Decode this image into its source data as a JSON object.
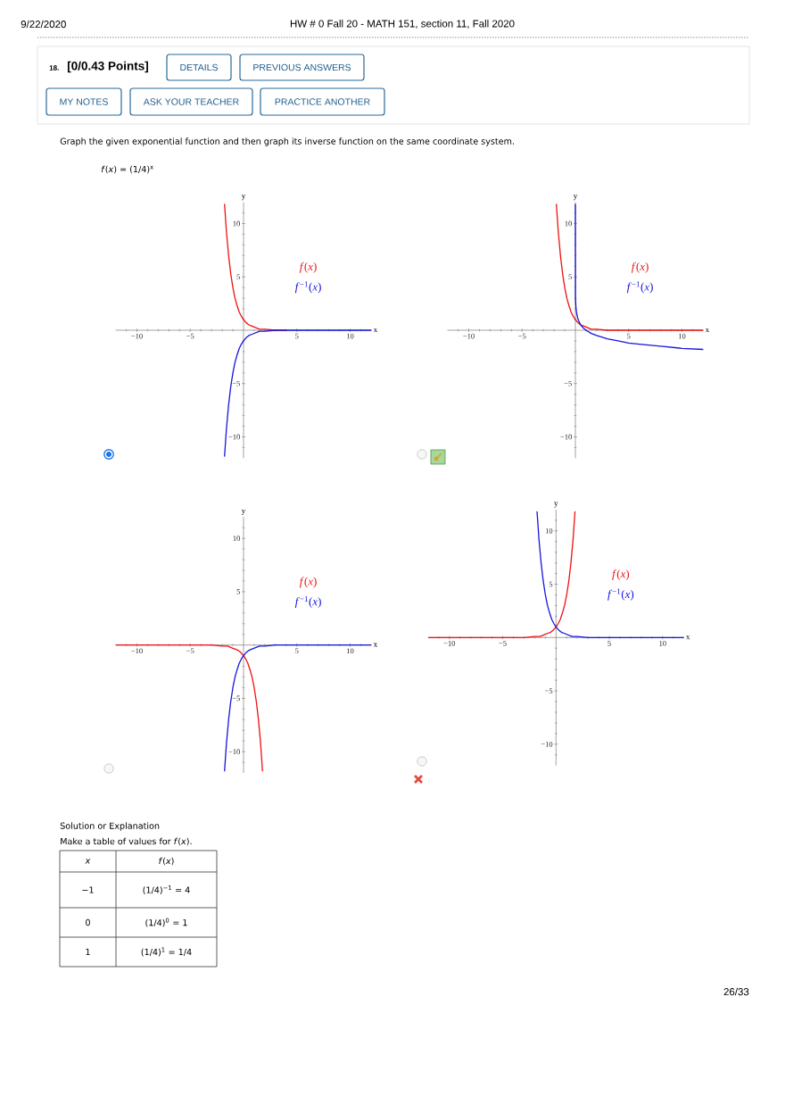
{
  "chart_data": [
    {
      "type": "line",
      "xlabel": "x",
      "ylabel": "y",
      "xlim": [
        -12,
        12
      ],
      "ylim": [
        -12,
        12
      ],
      "xticks": [
        {
          "value": -11,
          "label": null
        },
        {
          "value": -10,
          "label": "−10"
        },
        {
          "value": -9,
          "label": null
        },
        {
          "value": -8,
          "label": null
        },
        {
          "value": -7,
          "label": null
        },
        {
          "value": -6,
          "label": null
        },
        {
          "value": -5,
          "label": "−5"
        },
        {
          "value": -4,
          "label": null
        },
        {
          "value": -3,
          "label": null
        },
        {
          "value": -2,
          "label": null
        },
        {
          "value": -1,
          "label": null
        },
        {
          "value": 1,
          "label": null
        },
        {
          "value": 2,
          "label": null
        },
        {
          "value": 3,
          "label": null
        },
        {
          "value": 4,
          "label": null
        },
        5,
        {
          "value": 6,
          "label": null
        },
        {
          "value": 7,
          "label": null
        },
        {
          "value": 8,
          "label": null
        },
        {
          "value": 9,
          "label": null
        },
        10,
        {
          "value": 11,
          "label": null
        }
      ],
      "yticks": [
        {
          "value": -11,
          "label": null
        },
        {
          "value": -10,
          "label": "−10"
        },
        {
          "value": -9,
          "label": null
        },
        {
          "value": -8,
          "label": null
        },
        {
          "value": -7,
          "label": null
        },
        {
          "value": -6,
          "label": null
        },
        {
          "value": -5,
          "label": "−5"
        },
        {
          "value": -4,
          "label": null
        },
        {
          "value": -3,
          "label": null
        },
        {
          "value": -2,
          "label": null
        },
        {
          "value": -1,
          "label": null
        },
        {
          "value": 1,
          "label": null
        },
        {
          "value": 2,
          "label": null
        },
        {
          "value": 3,
          "label": null
        },
        {
          "value": 4,
          "label": null
        },
        5,
        {
          "value": 6,
          "label": null
        },
        {
          "value": 7,
          "label": null
        },
        {
          "value": 8,
          "label": null
        },
        {
          "value": 9,
          "label": null
        },
        10,
        {
          "value": 11,
          "label": null
        }
      ],
      "legend": "top right",
      "series": [
        {
          "name": "*f*(*x*)",
          "color": "#ee1111",
          "x": [
            -1.78,
            -1.6,
            -1.4,
            -1.2,
            -1,
            -0.8,
            -0.6,
            -0.4,
            -0.2,
            0,
            0.25,
            0.5,
            0.75,
            1,
            1.5,
            2,
            3,
            4
          ],
          "values": [
            11.8,
            9.2,
            7,
            5.3,
            4,
            3,
            2.3,
            1.7,
            1.3,
            1,
            0.7,
            0.5,
            0.4,
            0.3,
            0.1,
            0.1,
            0,
            0
          ]
        },
        {
          "name": "*f*$^{−1}$(*x*)",
          "color": "#1515dd",
          "x": [
            -1.78,
            -1.6,
            -1.4,
            -1.2,
            -1,
            -0.8,
            -0.6,
            -0.4,
            -0.2,
            0,
            0.25,
            0.5,
            0.75,
            1,
            1.5,
            2,
            3,
            4,
            6,
            8,
            10,
            12
          ],
          "values": [
            -11.8,
            -9.2,
            -7,
            -5.3,
            -4,
            -3,
            -2.3,
            -1.7,
            -1.3,
            -1,
            -0.7,
            -0.5,
            -0.4,
            -0.3,
            -0.1,
            -0.1,
            0,
            0,
            0,
            0,
            0,
            0
          ]
        }
      ],
      "annotations": [
        "9/22/2020",
        "HW # 0 Fall 20 - MATH 151, section 11, Fall 2020",
        "18.",
        "[0/0.43 Points]",
        "DETAILS",
        "PREVIOUS ANSWERS",
        "MY NOTES",
        "ASK YOUR TEACHER",
        "PRACTICE ANOTHER",
        "Graph the given exponential function and then graph its inverse function on the same coordinate system.",
        "*f*(*x*) = (1/4)$^{x}$"
      ]
    },
    {
      "type": "line",
      "xlabel": "x",
      "ylabel": "y",
      "xlim": [
        -12,
        12
      ],
      "ylim": [
        -12,
        12
      ],
      "xticks": [
        {
          "value": -11,
          "label": null
        },
        {
          "value": -10,
          "label": "−10"
        },
        {
          "value": -9,
          "label": null
        },
        {
          "value": -8,
          "label": null
        },
        {
          "value": -7,
          "label": null
        },
        {
          "value": -6,
          "label": null
        },
        {
          "value": -5,
          "label": "−5"
        },
        {
          "value": -4,
          "label": null
        },
        {
          "value": -3,
          "label": null
        },
        {
          "value": -2,
          "label": null
        },
        {
          "value": -1,
          "label": null
        },
        {
          "value": 1,
          "label": null
        },
        {
          "value": 2,
          "label": null
        },
        {
          "value": 3,
          "label": null
        },
        {
          "value": 4,
          "label": null
        },
        5,
        {
          "value": 6,
          "label": null
        },
        {
          "value": 7,
          "label": null
        },
        {
          "value": 8,
          "label": null
        },
        {
          "value": 9,
          "label": null
        },
        10,
        {
          "value": 11,
          "label": null
        }
      ],
      "yticks": [
        {
          "value": -11,
          "label": null
        },
        {
          "value": -10,
          "label": "−10"
        },
        {
          "value": -9,
          "label": null
        },
        {
          "value": -8,
          "label": null
        },
        {
          "value": -7,
          "label": null
        },
        {
          "value": -6,
          "label": null
        },
        {
          "value": -5,
          "label": "−5"
        },
        {
          "value": -4,
          "label": null
        },
        {
          "value": -3,
          "label": null
        },
        {
          "value": -2,
          "label": null
        },
        {
          "value": -1,
          "label": null
        },
        {
          "value": 1,
          "label": null
        },
        {
          "value": 2,
          "label": null
        },
        {
          "value": 3,
          "label": null
        },
        {
          "value": 4,
          "label": null
        },
        5,
        {
          "value": 6,
          "label": null
        },
        {
          "value": 7,
          "label": null
        },
        {
          "value": 8,
          "label": null
        },
        {
          "value": 9,
          "label": null
        },
        10,
        {
          "value": 11,
          "label": null
        }
      ],
      "legend": "top right",
      "series": [
        {
          "name": "*f*(*x*)",
          "color": "#ee1111",
          "x": [
            -1.78,
            -1.6,
            -1.4,
            -1.2,
            -1,
            -0.8,
            -0.6,
            -0.4,
            -0.2,
            0,
            0.25,
            0.5,
            0.75,
            1,
            1.5,
            2,
            3,
            4,
            6,
            8,
            10,
            12
          ],
          "values": [
            11.8,
            9.2,
            7,
            5.3,
            4,
            3,
            2.3,
            1.7,
            1.3,
            1,
            0.7,
            0.5,
            0.4,
            0.3,
            0.1,
            0.1,
            0,
            0,
            0,
            0,
            0,
            0
          ]
        },
        {
          "name": "*f*$^{−1}$(*x*)",
          "color": "#1515dd",
          "x": [
            0,
            0.01,
            0.02,
            0.05,
            0.1,
            0.2,
            0.3,
            0.5,
            0.75,
            1,
            1.5,
            2,
            3,
            4,
            5,
            6,
            8,
            10,
            12
          ],
          "values": [
            11.8,
            3.3,
            2.8,
            2.2,
            1.7,
            1.2,
            0.9,
            0.5,
            0.2,
            0,
            -0.3,
            -0.5,
            -0.8,
            -1,
            -1.2,
            -1.3,
            -1.5,
            -1.7,
            -1.8
          ]
        }
      ]
    },
    {
      "type": "line",
      "xlabel": "x",
      "ylabel": "y",
      "xlim": [
        -12,
        12
      ],
      "ylim": [
        -12,
        12
      ],
      "xticks": [
        {
          "value": -11,
          "label": null
        },
        {
          "value": -10,
          "label": "−10"
        },
        {
          "value": -9,
          "label": null
        },
        {
          "value": -8,
          "label": null
        },
        {
          "value": -7,
          "label": null
        },
        {
          "value": -6,
          "label": null
        },
        {
          "value": -5,
          "label": "−5"
        },
        {
          "value": -4,
          "label": null
        },
        {
          "value": -3,
          "label": null
        },
        {
          "value": -2,
          "label": null
        },
        {
          "value": -1,
          "label": null
        },
        {
          "value": 1,
          "label": null
        },
        {
          "value": 2,
          "label": null
        },
        {
          "value": 3,
          "label": null
        },
        {
          "value": 4,
          "label": null
        },
        5,
        {
          "value": 6,
          "label": null
        },
        {
          "value": 7,
          "label": null
        },
        {
          "value": 8,
          "label": null
        },
        {
          "value": 9,
          "label": null
        },
        10,
        {
          "value": 11,
          "label": null
        }
      ],
      "yticks": [
        {
          "value": -11,
          "label": null
        },
        {
          "value": -10,
          "label": "−10"
        },
        {
          "value": -9,
          "label": null
        },
        {
          "value": -8,
          "label": null
        },
        {
          "value": -7,
          "label": null
        },
        {
          "value": -6,
          "label": null
        },
        {
          "value": -5,
          "label": "−5"
        },
        {
          "value": -4,
          "label": null
        },
        {
          "value": -3,
          "label": null
        },
        {
          "value": -2,
          "label": null
        },
        {
          "value": -1,
          "label": null
        },
        {
          "value": 1,
          "label": null
        },
        {
          "value": 2,
          "label": null
        },
        {
          "value": 3,
          "label": null
        },
        {
          "value": 4,
          "label": null
        },
        5,
        {
          "value": 6,
          "label": null
        },
        {
          "value": 7,
          "label": null
        },
        {
          "value": 8,
          "label": null
        },
        {
          "value": 9,
          "label": null
        },
        10,
        {
          "value": 11,
          "label": null
        }
      ],
      "legend": "top right",
      "series": [
        {
          "name": "*f*(*x*)",
          "color": "#ee1111",
          "x": [
            -12,
            -10,
            -8,
            -6,
            -4,
            -3,
            -2,
            -1.5,
            -1,
            -0.75,
            -0.5,
            -0.25,
            0,
            0.2,
            0.4,
            0.6,
            0.8,
            1,
            1.2,
            1.4,
            1.6,
            1.78
          ],
          "values": [
            0,
            0,
            0,
            0,
            0,
            0,
            -0.1,
            -0.1,
            -0.3,
            -0.4,
            -0.5,
            -0.7,
            -1,
            -1.3,
            -1.7,
            -2.3,
            -3,
            -4,
            -5.3,
            -7,
            -9.2,
            -11.8
          ]
        },
        {
          "name": "*f*$^{−1}$(*x*)",
          "color": "#1515dd",
          "x": [
            -1.78,
            -1.6,
            -1.4,
            -1.2,
            -1,
            -0.8,
            -0.6,
            -0.4,
            -0.2,
            0,
            0.25,
            0.5,
            0.75,
            1,
            1.5,
            2,
            3,
            4,
            6,
            8,
            10,
            12
          ],
          "values": [
            -11.8,
            -9.2,
            -7,
            -5.3,
            -4,
            -3,
            -2.3,
            -1.7,
            -1.3,
            -1,
            -0.7,
            -0.5,
            -0.4,
            -0.3,
            -0.1,
            -0.1,
            0,
            0,
            0,
            0,
            0,
            0
          ]
        }
      ]
    },
    {
      "type": "line",
      "xlabel": "x",
      "ylabel": "y",
      "xlim": [
        -12,
        12
      ],
      "ylim": [
        -12,
        12
      ],
      "xticks": [
        {
          "value": -11,
          "label": null
        },
        {
          "value": -10,
          "label": "−10"
        },
        {
          "value": -9,
          "label": null
        },
        {
          "value": -8,
          "label": null
        },
        {
          "value": -7,
          "label": null
        },
        {
          "value": -6,
          "label": null
        },
        {
          "value": -5,
          "label": "−5"
        },
        {
          "value": -4,
          "label": null
        },
        {
          "value": -3,
          "label": null
        },
        {
          "value": -2,
          "label": null
        },
        {
          "value": -1,
          "label": null
        },
        {
          "value": 1,
          "label": null
        },
        {
          "value": 2,
          "label": null
        },
        {
          "value": 3,
          "label": null
        },
        {
          "value": 4,
          "label": null
        },
        5,
        {
          "value": 6,
          "label": null
        },
        {
          "value": 7,
          "label": null
        },
        {
          "value": 8,
          "label": null
        },
        {
          "value": 9,
          "label": null
        },
        10,
        {
          "value": 11,
          "label": null
        }
      ],
      "yticks": [
        {
          "value": -11,
          "label": null
        },
        {
          "value": -10,
          "label": "−10"
        },
        {
          "value": -9,
          "label": null
        },
        {
          "value": -8,
          "label": null
        },
        {
          "value": -7,
          "label": null
        },
        {
          "value": -6,
          "label": null
        },
        {
          "value": -5,
          "label": "−5"
        },
        {
          "value": -4,
          "label": null
        },
        {
          "value": -3,
          "label": null
        },
        {
          "value": -2,
          "label": null
        },
        {
          "value": -1,
          "label": null
        },
        {
          "value": 1,
          "label": null
        },
        {
          "value": 2,
          "label": null
        },
        {
          "value": 3,
          "label": null
        },
        {
          "value": 4,
          "label": null
        },
        5,
        {
          "value": 6,
          "label": null
        },
        {
          "value": 7,
          "label": null
        },
        {
          "value": 8,
          "label": null
        },
        {
          "value": 9,
          "label": null
        },
        10,
        {
          "value": 11,
          "label": null
        }
      ],
      "legend": "top right",
      "series": [
        {
          "name": "*f*(*x*)",
          "color": "#ee1111",
          "x": [
            -12,
            -10,
            -8,
            -6,
            -4,
            -3,
            -2,
            -1.5,
            -1,
            -0.75,
            -0.5,
            -0.25,
            0,
            0.2,
            0.4,
            0.6,
            0.8,
            1,
            1.2,
            1.4,
            1.6,
            1.78
          ],
          "values": [
            0,
            0,
            0,
            0,
            0,
            0,
            0.1,
            0.1,
            0.3,
            0.4,
            0.5,
            0.7,
            1,
            1.3,
            1.7,
            2.3,
            3,
            4,
            5.3,
            7,
            9.2,
            11.8
          ]
        },
        {
          "name": "*f*$^{−1}$(*x*)",
          "color": "#1515dd",
          "x": [
            -1.78,
            -1.6,
            -1.4,
            -1.2,
            -1,
            -0.8,
            -0.6,
            -0.4,
            -0.2,
            0,
            0.25,
            0.5,
            0.75,
            1,
            1.5,
            2,
            3,
            4,
            6,
            8,
            10,
            12
          ],
          "values": [
            11.8,
            9.2,
            7,
            5.3,
            4,
            3,
            2.3,
            1.7,
            1.3,
            1,
            0.7,
            0.5,
            0.4,
            0.3,
            0.1,
            0.1,
            0,
            0,
            0,
            0,
            0,
            0
          ]
        }
      ],
      "annotations": [
        "Solution or Explanation",
        "Make a table of values for *f*(*x*).",
        "*x*",
        "*f*(*x*)",
        "−1",
        "(1/4)$^{−1}$ = 4",
        "0",
        "(1/4)$^{0}$ = 1",
        "1",
        "(1/4)$^{1}$ = 1/4",
        "26/33"
      ]
    }
  ]
}
